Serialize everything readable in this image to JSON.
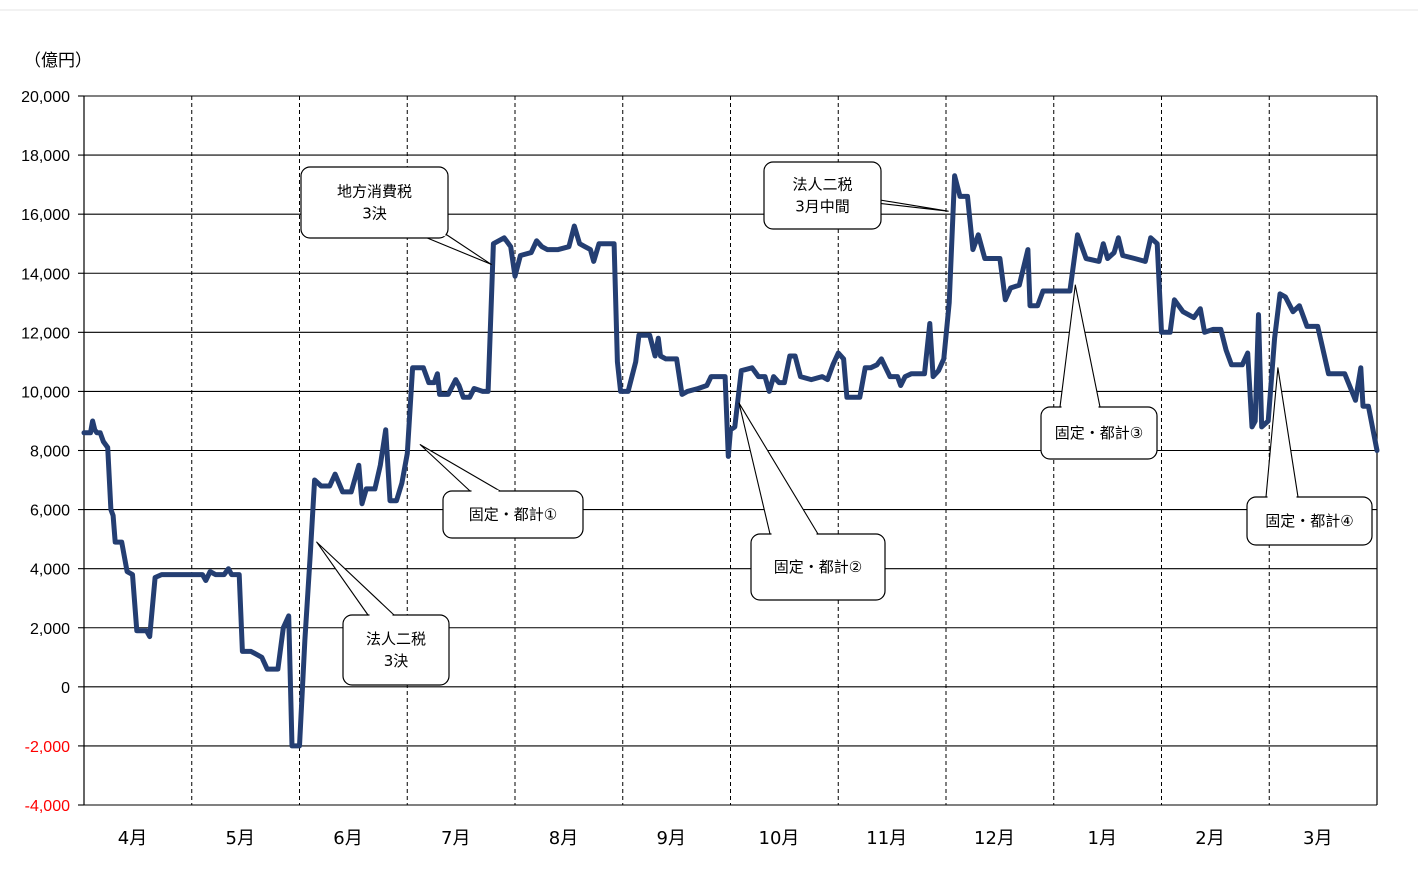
{
  "colors": {
    "line": "#243e72",
    "grid": "#000000",
    "negative_tick": "#ff0000",
    "positive_tick": "#000000"
  },
  "chart_data": {
    "type": "line",
    "unit_label": "（億円）",
    "ylim": [
      -4000,
      20000
    ],
    "yticks": [
      20000,
      18000,
      16000,
      14000,
      12000,
      10000,
      8000,
      6000,
      4000,
      2000,
      0,
      -2000,
      -4000
    ],
    "ytick_labels": [
      "20,000",
      "18,000",
      "16,000",
      "14,000",
      "12,000",
      "10,000",
      "8,000",
      "6,000",
      "4,000",
      "2,000",
      "0",
      "-2,000",
      "-4,000"
    ],
    "months": [
      "4月",
      "5月",
      "6月",
      "7月",
      "8月",
      "9月",
      "10月",
      "11月",
      "12月",
      "1月",
      "2月",
      "3月"
    ],
    "xlim": [
      0,
      12
    ],
    "grid": {
      "horizontal": "solid",
      "vertical": "dashed"
    },
    "series": [
      {
        "points": [
          [
            0.0,
            8600
          ],
          [
            0.06,
            8600
          ],
          [
            0.08,
            9000
          ],
          [
            0.1,
            8700
          ],
          [
            0.12,
            8600
          ],
          [
            0.15,
            8600
          ],
          [
            0.18,
            8300
          ],
          [
            0.22,
            8100
          ],
          [
            0.25,
            6000
          ],
          [
            0.27,
            5800
          ],
          [
            0.29,
            4900
          ],
          [
            0.35,
            4900
          ],
          [
            0.4,
            3900
          ],
          [
            0.45,
            3800
          ],
          [
            0.49,
            1900
          ],
          [
            0.58,
            1900
          ],
          [
            0.61,
            1700
          ],
          [
            0.66,
            3700
          ],
          [
            0.72,
            3800
          ],
          [
            0.8,
            3800
          ],
          [
            0.88,
            3800
          ],
          [
            1.0,
            3800
          ],
          [
            1.1,
            3800
          ],
          [
            1.13,
            3600
          ],
          [
            1.17,
            3900
          ],
          [
            1.22,
            3800
          ],
          [
            1.3,
            3800
          ],
          [
            1.34,
            4000
          ],
          [
            1.37,
            3800
          ],
          [
            1.44,
            3800
          ],
          [
            1.47,
            1200
          ],
          [
            1.55,
            1200
          ],
          [
            1.6,
            1100
          ],
          [
            1.65,
            1000
          ],
          [
            1.7,
            600
          ],
          [
            1.8,
            600
          ],
          [
            1.85,
            2000
          ],
          [
            1.9,
            2400
          ],
          [
            1.93,
            -2000
          ],
          [
            2.0,
            -2000
          ],
          [
            2.05,
            1600
          ],
          [
            2.1,
            4500
          ],
          [
            2.14,
            7000
          ],
          [
            2.2,
            6800
          ],
          [
            2.28,
            6800
          ],
          [
            2.33,
            7200
          ],
          [
            2.4,
            6600
          ],
          [
            2.48,
            6600
          ],
          [
            2.55,
            7500
          ],
          [
            2.58,
            6200
          ],
          [
            2.62,
            6700
          ],
          [
            2.7,
            6700
          ],
          [
            2.75,
            7500
          ],
          [
            2.8,
            8700
          ],
          [
            2.84,
            6300
          ],
          [
            2.9,
            6300
          ],
          [
            2.95,
            6900
          ],
          [
            3.0,
            7900
          ],
          [
            3.05,
            10800
          ],
          [
            3.15,
            10800
          ],
          [
            3.2,
            10300
          ],
          [
            3.25,
            10300
          ],
          [
            3.28,
            10600
          ],
          [
            3.3,
            9900
          ],
          [
            3.38,
            9900
          ],
          [
            3.45,
            10400
          ],
          [
            3.48,
            10200
          ],
          [
            3.52,
            9800
          ],
          [
            3.58,
            9800
          ],
          [
            3.62,
            10100
          ],
          [
            3.7,
            10000
          ],
          [
            3.75,
            10000
          ],
          [
            3.8,
            15000
          ],
          [
            3.9,
            15200
          ],
          [
            3.96,
            14900
          ],
          [
            4.0,
            13900
          ],
          [
            4.05,
            14600
          ],
          [
            4.15,
            14700
          ],
          [
            4.2,
            15100
          ],
          [
            4.25,
            14900
          ],
          [
            4.3,
            14800
          ],
          [
            4.4,
            14800
          ],
          [
            4.5,
            14900
          ],
          [
            4.55,
            15600
          ],
          [
            4.6,
            15000
          ],
          [
            4.65,
            14900
          ],
          [
            4.7,
            14800
          ],
          [
            4.73,
            14400
          ],
          [
            4.78,
            15000
          ],
          [
            4.85,
            15000
          ],
          [
            4.92,
            15000
          ],
          [
            4.95,
            11000
          ],
          [
            4.98,
            10000
          ],
          [
            5.05,
            10000
          ],
          [
            5.12,
            11000
          ],
          [
            5.15,
            11900
          ],
          [
            5.25,
            11900
          ],
          [
            5.3,
            11200
          ],
          [
            5.33,
            11800
          ],
          [
            5.35,
            11200
          ],
          [
            5.4,
            11100
          ],
          [
            5.5,
            11100
          ],
          [
            5.55,
            9900
          ],
          [
            5.6,
            10000
          ],
          [
            5.7,
            10100
          ],
          [
            5.78,
            10200
          ],
          [
            5.82,
            10500
          ],
          [
            5.95,
            10500
          ],
          [
            5.98,
            7800
          ],
          [
            6.0,
            8700
          ],
          [
            6.04,
            8800
          ],
          [
            6.1,
            10700
          ],
          [
            6.2,
            10800
          ],
          [
            6.26,
            10500
          ],
          [
            6.32,
            10500
          ],
          [
            6.36,
            10000
          ],
          [
            6.4,
            10500
          ],
          [
            6.45,
            10300
          ],
          [
            6.5,
            10300
          ],
          [
            6.55,
            11200
          ],
          [
            6.6,
            11200
          ],
          [
            6.65,
            10500
          ],
          [
            6.75,
            10400
          ],
          [
            6.85,
            10500
          ],
          [
            6.9,
            10400
          ],
          [
            6.95,
            10900
          ],
          [
            7.0,
            11300
          ],
          [
            7.05,
            11100
          ],
          [
            7.08,
            9800
          ],
          [
            7.2,
            9800
          ],
          [
            7.25,
            10800
          ],
          [
            7.3,
            10800
          ],
          [
            7.36,
            10900
          ],
          [
            7.4,
            11100
          ],
          [
            7.44,
            10800
          ],
          [
            7.48,
            10500
          ],
          [
            7.5,
            10500
          ],
          [
            7.55,
            10500
          ],
          [
            7.58,
            10200
          ],
          [
            7.62,
            10500
          ],
          [
            7.68,
            10600
          ],
          [
            7.8,
            10600
          ],
          [
            7.85,
            12300
          ],
          [
            7.88,
            10500
          ],
          [
            7.93,
            10700
          ],
          [
            7.98,
            11100
          ],
          [
            8.03,
            13000
          ],
          [
            8.08,
            17300
          ],
          [
            8.13,
            16600
          ],
          [
            8.2,
            16600
          ],
          [
            8.25,
            14800
          ],
          [
            8.3,
            15300
          ],
          [
            8.36,
            14500
          ],
          [
            8.5,
            14500
          ],
          [
            8.55,
            13100
          ],
          [
            8.6,
            13500
          ],
          [
            8.68,
            13600
          ],
          [
            8.76,
            14800
          ],
          [
            8.78,
            12900
          ],
          [
            8.85,
            12900
          ],
          [
            8.9,
            13400
          ],
          [
            9.05,
            13400
          ],
          [
            9.15,
            13400
          ],
          [
            9.22,
            15300
          ],
          [
            9.3,
            14500
          ],
          [
            9.42,
            14400
          ],
          [
            9.46,
            15000
          ],
          [
            9.5,
            14500
          ],
          [
            9.56,
            14700
          ],
          [
            9.6,
            15200
          ],
          [
            9.64,
            14600
          ],
          [
            9.75,
            14500
          ],
          [
            9.85,
            14400
          ],
          [
            9.9,
            15200
          ],
          [
            9.96,
            15000
          ],
          [
            10.0,
            12000
          ],
          [
            10.08,
            12000
          ],
          [
            10.12,
            13100
          ],
          [
            10.2,
            12700
          ],
          [
            10.3,
            12500
          ],
          [
            10.36,
            12800
          ],
          [
            10.4,
            12000
          ],
          [
            10.48,
            12100
          ],
          [
            10.55,
            12100
          ],
          [
            10.6,
            11400
          ],
          [
            10.65,
            10900
          ],
          [
            10.75,
            10900
          ],
          [
            10.8,
            11300
          ],
          [
            10.84,
            8800
          ],
          [
            10.87,
            9000
          ],
          [
            10.9,
            12600
          ],
          [
            10.93,
            8800
          ],
          [
            10.99,
            9000
          ],
          [
            11.05,
            11800
          ],
          [
            11.1,
            13300
          ],
          [
            11.15,
            13200
          ],
          [
            11.22,
            12700
          ],
          [
            11.28,
            12900
          ],
          [
            11.35,
            12200
          ],
          [
            11.45,
            12200
          ],
          [
            11.55,
            10600
          ],
          [
            11.7,
            10600
          ],
          [
            11.8,
            9700
          ],
          [
            11.85,
            10800
          ],
          [
            11.87,
            9500
          ],
          [
            11.92,
            9500
          ],
          [
            12.0,
            8000
          ]
        ]
      }
    ],
    "annotations": [
      {
        "lines": [
          "地方消費税",
          "3決"
        ],
        "target": [
          3.78,
          14300
        ]
      },
      {
        "lines": [
          "法人二税",
          "3月中間"
        ],
        "target": [
          8.02,
          16100
        ]
      },
      {
        "lines": [
          "固定・都計①"
        ],
        "target": [
          3.12,
          8200
        ]
      },
      {
        "lines": [
          "法人二税",
          "3決"
        ],
        "target": [
          2.16,
          4900
        ]
      },
      {
        "lines": [
          "固定・都計②"
        ],
        "target": [
          6.08,
          9600
        ]
      },
      {
        "lines": [
          "固定・都計③"
        ],
        "target": [
          9.2,
          13600
        ]
      },
      {
        "lines": [
          "固定・都計④"
        ],
        "target": [
          11.08,
          10800
        ]
      }
    ]
  }
}
